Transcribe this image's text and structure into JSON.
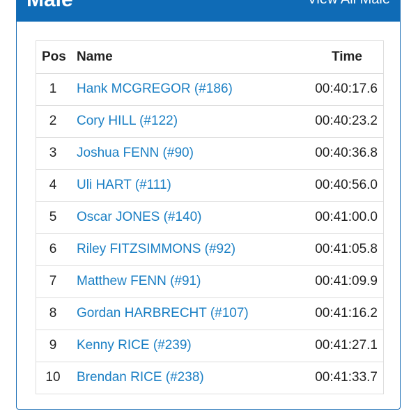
{
  "header": {
    "title": "Male",
    "view_all_label": "View All Male"
  },
  "table": {
    "columns": {
      "pos": "Pos",
      "name": "Name",
      "time": "Time"
    },
    "rows": [
      {
        "pos": "1",
        "name": "Hank MCGREGOR (#186)",
        "time": "00:40:17.6"
      },
      {
        "pos": "2",
        "name": "Cory HILL (#122)",
        "time": "00:40:23.2"
      },
      {
        "pos": "3",
        "name": "Joshua FENN (#90)",
        "time": "00:40:36.8"
      },
      {
        "pos": "4",
        "name": "Uli HART (#111)",
        "time": "00:40:56.0"
      },
      {
        "pos": "5",
        "name": "Oscar JONES (#140)",
        "time": "00:41:00.0"
      },
      {
        "pos": "6",
        "name": "Riley FITZSIMMONS (#92)",
        "time": "00:41:05.8"
      },
      {
        "pos": "7",
        "name": "Matthew FENN (#91)",
        "time": "00:41:09.9"
      },
      {
        "pos": "8",
        "name": "Gordan HARBRECHT (#107)",
        "time": "00:41:16.2"
      },
      {
        "pos": "9",
        "name": "Kenny RICE (#239)",
        "time": "00:41:27.1"
      },
      {
        "pos": "10",
        "name": "Brendan RICE (#238)",
        "time": "00:41:33.7"
      }
    ]
  },
  "colors": {
    "header_bg": "#0f6bb6",
    "link": "#1a7fc4",
    "border": "#dddddd"
  }
}
